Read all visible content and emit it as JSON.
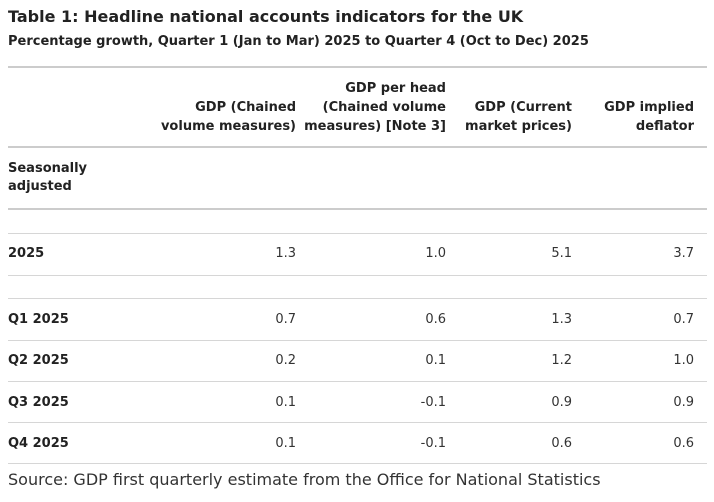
{
  "title": "Table 1: Headline national accounts indicators for the UK",
  "subtitle": "Percentage growth, Quarter 1 (Jan to Mar) 2025 to Quarter 4 (Oct to Dec) 2025",
  "columns": [
    {
      "lines": [
        "GDP (Chained",
        "volume measures)"
      ]
    },
    {
      "lines": [
        "GDP per head",
        "(Chained volume",
        "measures) [Note 3]"
      ]
    },
    {
      "lines": [
        "GDP (Current",
        "market prices)"
      ]
    },
    {
      "lines": [
        "GDP implied",
        "deflator"
      ]
    }
  ],
  "section_label": [
    "Seasonally",
    "adjusted"
  ],
  "rows": [
    {
      "label": "2025",
      "values": [
        "1.3",
        "1.0",
        "5.1",
        "3.7"
      ]
    },
    {
      "label": "Q1 2025",
      "values": [
        "0.7",
        "0.6",
        "1.3",
        "0.7"
      ]
    },
    {
      "label": "Q2 2025",
      "values": [
        "0.2",
        "0.1",
        "1.2",
        "1.0"
      ]
    },
    {
      "label": "Q3 2025",
      "values": [
        "0.1",
        "-0.1",
        "0.9",
        "0.9"
      ]
    },
    {
      "label": "Q4 2025",
      "values": [
        "0.1",
        "-0.1",
        "0.6",
        "0.6"
      ]
    }
  ],
  "source": "Source: GDP first quarterly estimate from the Office for National Statistics"
}
